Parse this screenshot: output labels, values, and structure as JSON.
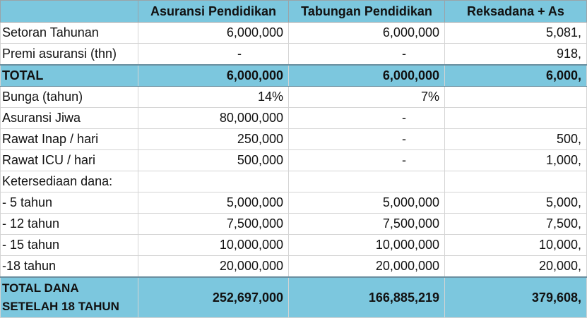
{
  "columns": [
    "",
    "Asuransi Pendidikan",
    "Tabungan Pendidikan",
    "Reksadana + As"
  ],
  "rows": [
    {
      "type": "normal",
      "label": "Setoran Tahunan",
      "v1": "6,000,000",
      "v2": "6,000,000",
      "v3": "5,081,"
    },
    {
      "type": "normal",
      "label": "Premi asuransi (thn)",
      "v1": "-",
      "v2": "-",
      "v3": "918,"
    },
    {
      "type": "total",
      "label": "TOTAL",
      "v1": "6,000,000",
      "v2": "6,000,000",
      "v3": "6,000,"
    },
    {
      "type": "normal",
      "label": "Bunga (tahun)",
      "v1": "14%",
      "v2": "7%",
      "v3": ""
    },
    {
      "type": "normal",
      "label": "Asuransi Jiwa",
      "v1": "80,000,000",
      "v2": "-",
      "v3": ""
    },
    {
      "type": "normal",
      "label": "Rawat Inap / hari",
      "v1": "250,000",
      "v2": "-",
      "v3": "500,"
    },
    {
      "type": "normal",
      "label": "Rawat ICU / hari",
      "v1": "500,000",
      "v2": "-",
      "v3": "1,000,"
    },
    {
      "type": "normal",
      "label": "Ketersediaan dana:",
      "v1": "",
      "v2": "",
      "v3": ""
    },
    {
      "type": "normal",
      "label": "- 5 tahun",
      "v1": "5,000,000",
      "v2": "5,000,000",
      "v3": "5,000,"
    },
    {
      "type": "normal",
      "label": "- 12 tahun",
      "v1": "7,500,000",
      "v2": "7,500,000",
      "v3": "7,500,"
    },
    {
      "type": "normal",
      "label": "- 15 tahun",
      "v1": "10,000,000",
      "v2": "10,000,000",
      "v3": "10,000,"
    },
    {
      "type": "normal",
      "label": "-18 tahun",
      "v1": "20,000,000",
      "v2": "20,000,000",
      "v3": "20,000,"
    },
    {
      "type": "final",
      "label": "TOTAL DANA SETELAH 18 TAHUN",
      "v1": "252,697,000",
      "v2": "166,885,219",
      "v3": "379,608,"
    }
  ]
}
